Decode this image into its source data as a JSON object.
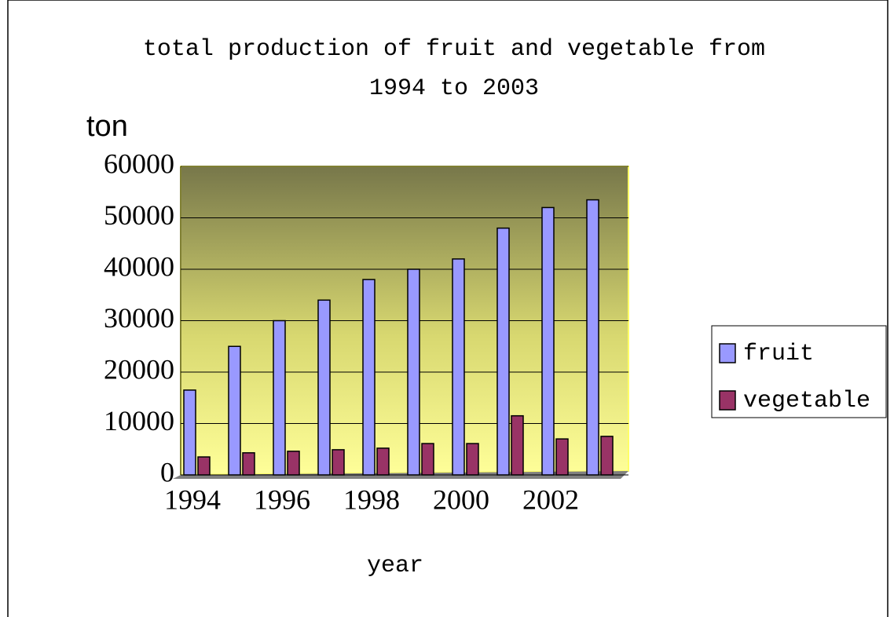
{
  "chart_data": {
    "type": "bar",
    "title": "total production of fruit and vegetable from",
    "subtitle": "1994 to 2003",
    "y_label": "ton",
    "x_label": "year",
    "categories": [
      "1994",
      null,
      "1996",
      null,
      "1998",
      null,
      "2000",
      null,
      "2002",
      null
    ],
    "series": [
      {
        "name": "fruit",
        "color": "#9999ff",
        "values": [
          16500,
          25000,
          30000,
          34000,
          38000,
          40000,
          42000,
          48000,
          52000,
          53500
        ]
      },
      {
        "name": "vegetable",
        "color": "#993366",
        "values": [
          3500,
          4300,
          4600,
          4900,
          5200,
          6100,
          6100,
          11500,
          7000,
          7500
        ]
      }
    ],
    "ylim": [
      0,
      60000
    ],
    "yticks": [
      0,
      10000,
      20000,
      30000,
      40000,
      50000,
      60000
    ],
    "grid": true,
    "legend": "right"
  }
}
